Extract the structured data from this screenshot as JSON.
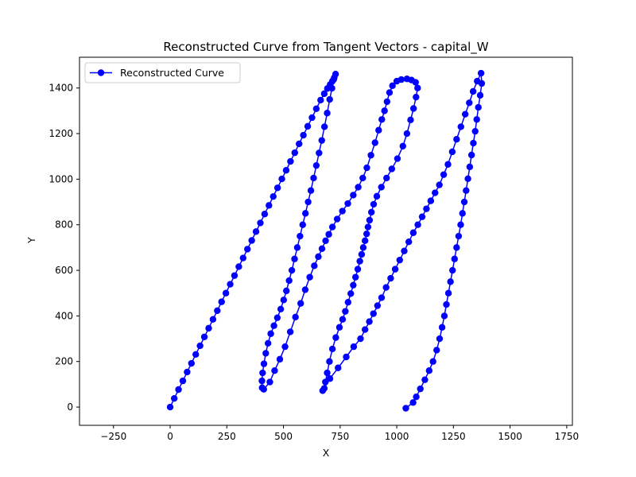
{
  "chart_data": {
    "type": "line",
    "title": "Reconstructed Curve from Tangent Vectors - capital_W",
    "xlabel": "X",
    "ylabel": "Y",
    "xlim": [
      -400,
      1775
    ],
    "ylim": [
      -80,
      1535
    ],
    "xticks": [
      -250,
      0,
      250,
      500,
      750,
      1000,
      1250,
      1500,
      1750
    ],
    "yticks": [
      0,
      200,
      400,
      600,
      800,
      1000,
      1200,
      1400
    ],
    "grid": false,
    "legend_position": "top-left",
    "series": [
      {
        "name": "Reconstructed Curve",
        "color": "#0000ff",
        "marker": "circle",
        "points": [
          [
            0,
            0
          ],
          [
            18,
            38
          ],
          [
            37,
            77
          ],
          [
            56,
            115
          ],
          [
            75,
            154
          ],
          [
            94,
            192
          ],
          [
            113,
            231
          ],
          [
            132,
            269
          ],
          [
            151,
            308
          ],
          [
            170,
            346
          ],
          [
            189,
            385
          ],
          [
            208,
            423
          ],
          [
            227,
            462
          ],
          [
            246,
            500
          ],
          [
            265,
            539
          ],
          [
            284,
            577
          ],
          [
            303,
            616
          ],
          [
            322,
            654
          ],
          [
            341,
            693
          ],
          [
            360,
            731
          ],
          [
            379,
            770
          ],
          [
            398,
            808
          ],
          [
            417,
            847
          ],
          [
            436,
            885
          ],
          [
            455,
            924
          ],
          [
            474,
            962
          ],
          [
            493,
            1001
          ],
          [
            512,
            1039
          ],
          [
            531,
            1078
          ],
          [
            550,
            1116
          ],
          [
            569,
            1155
          ],
          [
            588,
            1193
          ],
          [
            607,
            1232
          ],
          [
            626,
            1270
          ],
          [
            645,
            1309
          ],
          [
            664,
            1347
          ],
          [
            680,
            1375
          ],
          [
            694,
            1398
          ],
          [
            706,
            1415
          ],
          [
            716,
            1430
          ],
          [
            724,
            1445
          ],
          [
            730,
            1461
          ],
          [
            722,
            1438
          ],
          [
            714,
            1399
          ],
          [
            704,
            1350
          ],
          [
            693,
            1290
          ],
          [
            681,
            1230
          ],
          [
            669,
            1170
          ],
          [
            657,
            1115
          ],
          [
            645,
            1060
          ],
          [
            633,
            1005
          ],
          [
            621,
            950
          ],
          [
            609,
            900
          ],
          [
            597,
            850
          ],
          [
            585,
            800
          ],
          [
            573,
            750
          ],
          [
            561,
            700
          ],
          [
            549,
            650
          ],
          [
            537,
            600
          ],
          [
            525,
            555
          ],
          [
            513,
            510
          ],
          [
            501,
            470
          ],
          [
            488,
            430
          ],
          [
            473,
            392
          ],
          [
            458,
            357
          ],
          [
            444,
            322
          ],
          [
            432,
            280
          ],
          [
            422,
            236
          ],
          [
            414,
            190
          ],
          [
            408,
            150
          ],
          [
            405,
            115
          ],
          [
            406,
            85
          ],
          [
            413,
            78
          ],
          [
            440,
            110
          ],
          [
            461,
            160
          ],
          [
            484,
            210
          ],
          [
            507,
            265
          ],
          [
            530,
            330
          ],
          [
            553,
            395
          ],
          [
            576,
            455
          ],
          [
            596,
            515
          ],
          [
            616,
            570
          ],
          [
            636,
            620
          ],
          [
            654,
            660
          ],
          [
            670,
            695
          ],
          [
            686,
            730
          ],
          [
            700,
            758
          ],
          [
            716,
            790
          ],
          [
            737,
            825
          ],
          [
            760,
            860
          ],
          [
            784,
            893
          ],
          [
            808,
            930
          ],
          [
            830,
            965
          ],
          [
            850,
            1005
          ],
          [
            868,
            1050
          ],
          [
            886,
            1105
          ],
          [
            904,
            1160
          ],
          [
            920,
            1215
          ],
          [
            934,
            1262
          ],
          [
            946,
            1300
          ],
          [
            957,
            1340
          ],
          [
            968,
            1380
          ],
          [
            981,
            1410
          ],
          [
            1000,
            1430
          ],
          [
            1020,
            1437
          ],
          [
            1045,
            1440
          ],
          [
            1065,
            1435
          ],
          [
            1083,
            1425
          ],
          [
            1092,
            1400
          ],
          [
            1085,
            1360
          ],
          [
            1074,
            1310
          ],
          [
            1061,
            1260
          ],
          [
            1045,
            1200
          ],
          [
            1027,
            1145
          ],
          [
            1003,
            1090
          ],
          [
            978,
            1045
          ],
          [
            955,
            1005
          ],
          [
            932,
            965
          ],
          [
            912,
            925
          ],
          [
            898,
            890
          ],
          [
            888,
            855
          ],
          [
            880,
            820
          ],
          [
            873,
            790
          ],
          [
            867,
            760
          ],
          [
            860,
            730
          ],
          [
            852,
            700
          ],
          [
            845,
            670
          ],
          [
            837,
            640
          ],
          [
            828,
            605
          ],
          [
            818,
            570
          ],
          [
            808,
            535
          ],
          [
            797,
            498
          ],
          [
            785,
            460
          ],
          [
            773,
            420
          ],
          [
            761,
            385
          ],
          [
            747,
            350
          ],
          [
            731,
            305
          ],
          [
            716,
            255
          ],
          [
            703,
            200
          ],
          [
            693,
            150
          ],
          [
            685,
            110
          ],
          [
            680,
            82
          ],
          [
            673,
            72
          ],
          [
            705,
            125
          ],
          [
            741,
            172
          ],
          [
            777,
            220
          ],
          [
            810,
            265
          ],
          [
            840,
            300
          ],
          [
            860,
            340
          ],
          [
            879,
            375
          ],
          [
            897,
            410
          ],
          [
            915,
            445
          ],
          [
            933,
            480
          ],
          [
            953,
            525
          ],
          [
            973,
            565
          ],
          [
            993,
            605
          ],
          [
            1013,
            645
          ],
          [
            1033,
            685
          ],
          [
            1053,
            725
          ],
          [
            1073,
            765
          ],
          [
            1093,
            800
          ],
          [
            1112,
            835
          ],
          [
            1131,
            870
          ],
          [
            1150,
            905
          ],
          [
            1169,
            940
          ],
          [
            1188,
            975
          ],
          [
            1207,
            1020
          ],
          [
            1226,
            1065
          ],
          [
            1245,
            1120
          ],
          [
            1264,
            1175
          ],
          [
            1283,
            1230
          ],
          [
            1302,
            1285
          ],
          [
            1320,
            1335
          ],
          [
            1337,
            1385
          ],
          [
            1355,
            1430
          ],
          [
            1372,
            1465
          ],
          [
            1375,
            1420
          ],
          [
            1368,
            1368
          ],
          [
            1360,
            1315
          ],
          [
            1353,
            1262
          ],
          [
            1346,
            1210
          ],
          [
            1338,
            1158
          ],
          [
            1330,
            1106
          ],
          [
            1322,
            1054
          ],
          [
            1314,
            1002
          ],
          [
            1306,
            950
          ],
          [
            1298,
            900
          ],
          [
            1290,
            850
          ],
          [
            1282,
            800
          ],
          [
            1273,
            750
          ],
          [
            1264,
            700
          ],
          [
            1255,
            650
          ],
          [
            1246,
            600
          ],
          [
            1237,
            550
          ],
          [
            1228,
            500
          ],
          [
            1219,
            450
          ],
          [
            1210,
            400
          ],
          [
            1200,
            350
          ],
          [
            1189,
            300
          ],
          [
            1176,
            250
          ],
          [
            1160,
            200
          ],
          [
            1143,
            160
          ],
          [
            1124,
            120
          ],
          [
            1104,
            80
          ],
          [
            1086,
            45
          ],
          [
            1072,
            20
          ],
          [
            1040,
            -5
          ]
        ]
      }
    ]
  }
}
